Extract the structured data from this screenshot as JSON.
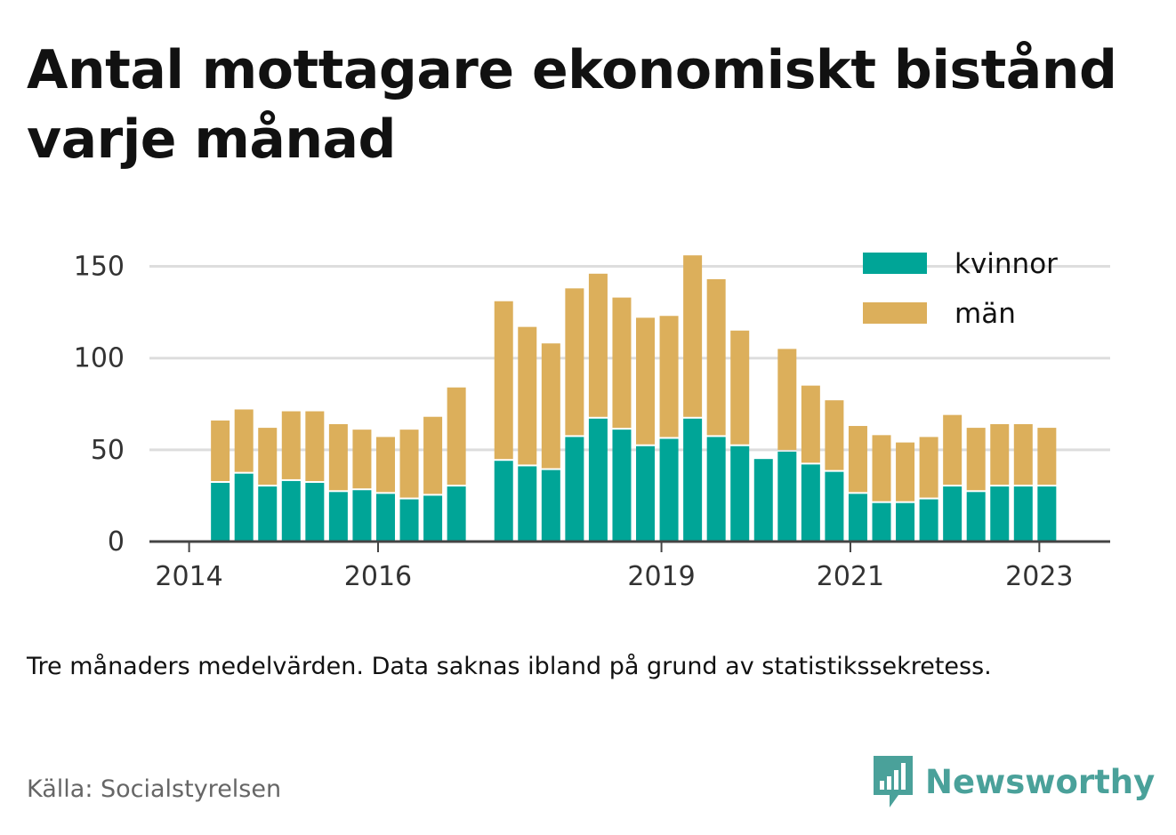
{
  "title": "Antal mottagare ekonomiskt bistånd varje månad",
  "note": "Tre månaders medelvärden. Data saknas ibland på grund av statistikssekretess.",
  "source": "Källa: Socialstyrelsen",
  "brand": {
    "name": "Newsworthy",
    "icon": "newsworthy-logo-icon",
    "color": "#4aa19a"
  },
  "colors": {
    "kvinnor": "#00a597",
    "man": "#dcaf5b",
    "grid": "#dddddd",
    "axis": "#444444"
  },
  "chart_data": {
    "type": "bar",
    "stacked": true,
    "title": "Antal mottagare ekonomiskt bistånd varje månad",
    "xlabel": "",
    "ylabel": "",
    "ylim": [
      0,
      160
    ],
    "y_ticks": [
      0,
      50,
      100,
      150
    ],
    "x_tick_labels": [
      "2014",
      "2016",
      "2019",
      "2021",
      "2023"
    ],
    "x_tick_values": [
      2014,
      2016,
      2019,
      2021,
      2023
    ],
    "xlim": [
      2013.58,
      2023.75
    ],
    "grid": true,
    "legend_position": "top-right",
    "x": [
      2014.33,
      2014.58,
      2014.83,
      2015.08,
      2015.33,
      2015.58,
      2015.83,
      2016.08,
      2016.33,
      2016.58,
      2016.83,
      2017.33,
      2017.58,
      2017.83,
      2018.08,
      2018.33,
      2018.58,
      2018.83,
      2019.08,
      2019.33,
      2019.58,
      2019.83,
      2020.08,
      2020.33,
      2020.58,
      2020.83,
      2021.08,
      2021.33,
      2021.58,
      2021.83,
      2022.08,
      2022.33,
      2022.58,
      2022.83,
      2023.08
    ],
    "series": [
      {
        "name": "kvinnor",
        "values": [
          32,
          37,
          30,
          33,
          32,
          27,
          28,
          26,
          23,
          25,
          30,
          44,
          41,
          39,
          57,
          67,
          61,
          52,
          56,
          67,
          57,
          52,
          45,
          49,
          42,
          38,
          26,
          21,
          21,
          23,
          30,
          27,
          30,
          30,
          30
        ]
      },
      {
        "name": "män",
        "values": [
          34,
          35,
          32,
          38,
          39,
          37,
          33,
          31,
          38,
          43,
          54,
          87,
          76,
          69,
          81,
          79,
          72,
          70,
          67,
          89,
          86,
          63,
          0,
          56,
          43,
          39,
          37,
          37,
          33,
          34,
          39,
          35,
          34,
          34,
          32
        ]
      }
    ]
  }
}
